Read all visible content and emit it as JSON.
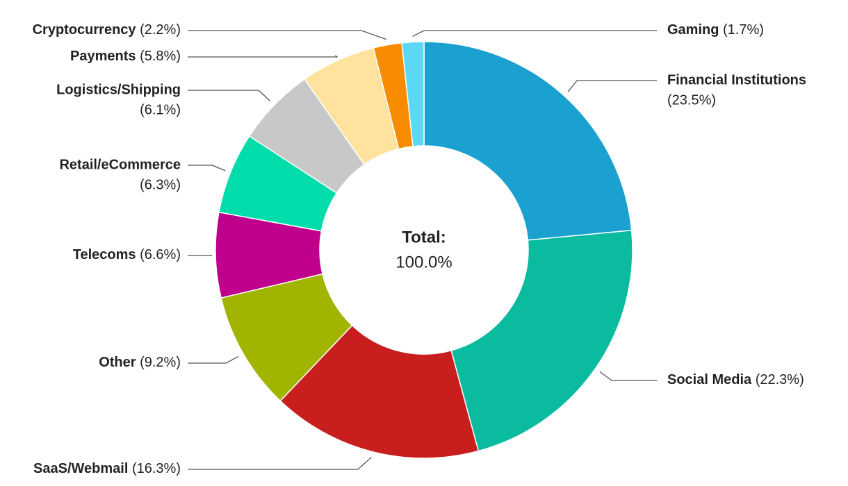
{
  "chart_data": {
    "type": "donut",
    "categories": [
      "Financial Institutions",
      "Social Media",
      "SaaS/Webmail",
      "Other",
      "Telecoms",
      "Retail/eCommerce",
      "Logistics/Shipping",
      "Payments",
      "Cryptocurrency",
      "Gaming"
    ],
    "values": [
      23.5,
      22.3,
      16.3,
      9.2,
      6.6,
      6.3,
      6.1,
      5.8,
      2.2,
      1.7
    ],
    "value_labels": [
      "(23.5%)",
      "(22.3%)",
      "(16.3%)",
      "(9.2%)",
      "(6.6%)",
      "(6.3%)",
      "(6.1%)",
      "(5.8%)",
      "(2.2%)",
      "(1.7%)"
    ],
    "colors": [
      "#1ba1d0",
      "#0bbba0",
      "#c81e1e",
      "#a0b400",
      "#c0008c",
      "#00dcaa",
      "#c8c8c8",
      "#ffe29e",
      "#f78c00",
      "#5cd8f5"
    ],
    "center_title": "Total:",
    "center_text": "100.0%"
  }
}
